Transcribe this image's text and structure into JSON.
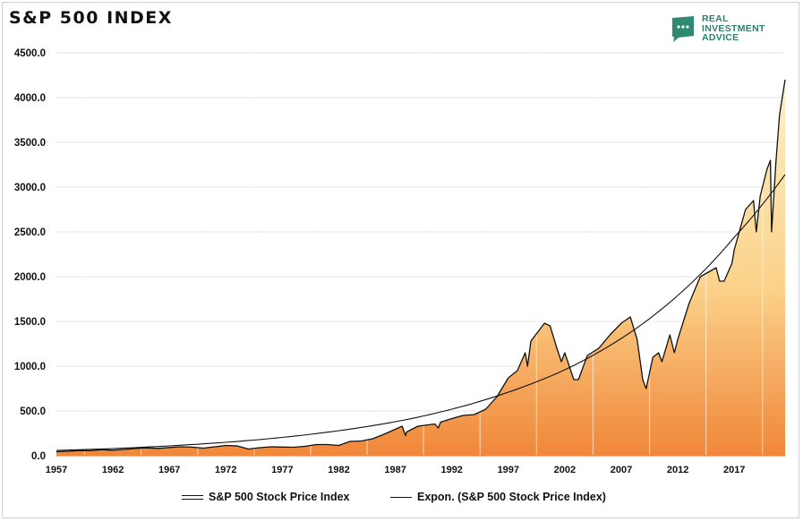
{
  "title": "S&P 500 INDEX",
  "logo": {
    "lines": [
      "REAL",
      "INVESTMENT",
      "ADVICE"
    ],
    "icon": "chat-bubble-icon",
    "color": "#2e7f6c"
  },
  "legend": {
    "series_label": "S&P 500 Stock Price Index",
    "trend_label": "Expon. (S&P 500 Stock Price Index)"
  },
  "chart_data": {
    "type": "area",
    "title": "S&P 500 INDEX",
    "xlabel": "",
    "ylabel": "",
    "xlim": [
      1957,
      2021.5
    ],
    "ylim": [
      0,
      4500
    ],
    "y_ticks": [
      "0.0",
      "500.0",
      "1000.0",
      "1500.0",
      "2000.0",
      "2500.0",
      "3000.0",
      "3500.0",
      "4000.0",
      "4500.0"
    ],
    "y_tick_values": [
      0,
      500,
      1000,
      1500,
      2000,
      2500,
      3000,
      3500,
      4000,
      4500
    ],
    "x_ticks": [
      "1957",
      "1962",
      "1967",
      "1972",
      "1977",
      "1982",
      "1987",
      "1992",
      "1997",
      "2002",
      "2007",
      "2012",
      "2017"
    ],
    "x_tick_values": [
      1957,
      1962,
      1967,
      1972,
      1977,
      1982,
      1987,
      1992,
      1997,
      2002,
      2007,
      2012,
      2017
    ],
    "grid": "horizontal",
    "legend_position": "bottom",
    "area_colors": {
      "top": "#fdf0c8",
      "mid": "#fbd28a",
      "bottom": "#f0873a"
    },
    "series": [
      {
        "name": "S&P 500 Stock Price Index",
        "style": "double-line",
        "x": [
          1957,
          1958,
          1959,
          1960,
          1961,
          1962,
          1963,
          1964,
          1965,
          1966,
          1967,
          1968,
          1969,
          1970,
          1971,
          1972,
          1973,
          1974,
          1975,
          1976,
          1977,
          1978,
          1979,
          1980,
          1981,
          1982,
          1983,
          1984,
          1985,
          1986,
          1987.6,
          1987.9,
          1988,
          1989,
          1990.5,
          1990.8,
          1991,
          1992,
          1993,
          1994,
          1995,
          1996,
          1997,
          1997.8,
          1998.5,
          1998.7,
          1999,
          2000.2,
          2000.7,
          2001.3,
          2001.7,
          2002,
          2002.8,
          2003.2,
          2004,
          2005,
          2006,
          2007,
          2007.8,
          2008.4,
          2008.9,
          2009.2,
          2009.8,
          2010.3,
          2010.6,
          2011.3,
          2011.7,
          2012,
          2013,
          2014,
          2015.4,
          2015.7,
          2016.1,
          2016.8,
          2017,
          2018,
          2018.7,
          2018.95,
          2019.3,
          2019.9,
          2020.2,
          2020.3,
          2020.7,
          2021,
          2021.5
        ],
        "y": [
          45,
          50,
          58,
          56,
          68,
          62,
          70,
          82,
          88,
          82,
          92,
          100,
          96,
          85,
          100,
          115,
          110,
          75,
          90,
          100,
          97,
          95,
          105,
          125,
          125,
          115,
          160,
          165,
          190,
          240,
          330,
          225,
          265,
          330,
          355,
          310,
          375,
          415,
          450,
          460,
          520,
          660,
          870,
          950,
          1150,
          1000,
          1280,
          1480,
          1450,
          1200,
          1050,
          1150,
          850,
          850,
          1120,
          1200,
          1350,
          1480,
          1550,
          1300,
          850,
          750,
          1100,
          1150,
          1050,
          1350,
          1150,
          1300,
          1700,
          2000,
          2100,
          1950,
          1950,
          2150,
          2300,
          2750,
          2850,
          2500,
          2900,
          3200,
          3300,
          2500,
          3300,
          3800,
          4200
        ]
      },
      {
        "name": "Expon. (S&P 500 Stock Price Index)",
        "style": "trendline",
        "x": [
          1957,
          1962,
          1967,
          1972,
          1977,
          1982,
          1987,
          1992,
          1997,
          2002,
          2007,
          2012,
          2017,
          2021.5
        ],
        "y": [
          60,
          80,
          110,
          150,
          205,
          280,
          380,
          520,
          710,
          960,
          1310,
          1790,
          2440,
          3140
        ]
      }
    ]
  }
}
